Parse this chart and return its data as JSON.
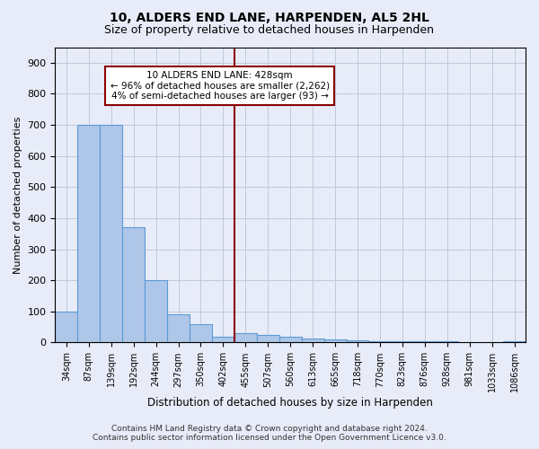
{
  "title": "10, ALDERS END LANE, HARPENDEN, AL5 2HL",
  "subtitle": "Size of property relative to detached houses in Harpenden",
  "xlabel": "Distribution of detached houses by size in Harpenden",
  "ylabel": "Number of detached properties",
  "bar_labels": [
    "34sqm",
    "87sqm",
    "139sqm",
    "192sqm",
    "244sqm",
    "297sqm",
    "350sqm",
    "402sqm",
    "455sqm",
    "507sqm",
    "560sqm",
    "613sqm",
    "665sqm",
    "718sqm",
    "770sqm",
    "823sqm",
    "876sqm",
    "928sqm",
    "981sqm",
    "1033sqm",
    "1086sqm"
  ],
  "bar_values": [
    100,
    700,
    700,
    370,
    200,
    90,
    60,
    20,
    30,
    25,
    18,
    12,
    10,
    6,
    5,
    5,
    3,
    3,
    2,
    1,
    3
  ],
  "bar_color": "#aec6e8",
  "bar_edge_color": "#5b9bd5",
  "vline_color": "#8b0000",
  "annotation_title": "10 ALDERS END LANE: 428sqm",
  "annotation_line1": "← 96% of detached houses are smaller (2,262)",
  "annotation_line2": "4% of semi-detached houses are larger (93) →",
  "annotation_box_color": "#8b0000",
  "annotation_fill": "#ffffff",
  "ylim": [
    0,
    950
  ],
  "yticks": [
    0,
    100,
    200,
    300,
    400,
    500,
    600,
    700,
    800,
    900
  ],
  "footer_line1": "Contains HM Land Registry data © Crown copyright and database right 2024.",
  "footer_line2": "Contains public sector information licensed under the Open Government Licence v3.0.",
  "bg_color": "#e8ecf8",
  "grid_color": "#c0c8e0",
  "title_fontsize": 10,
  "subtitle_fontsize": 9
}
